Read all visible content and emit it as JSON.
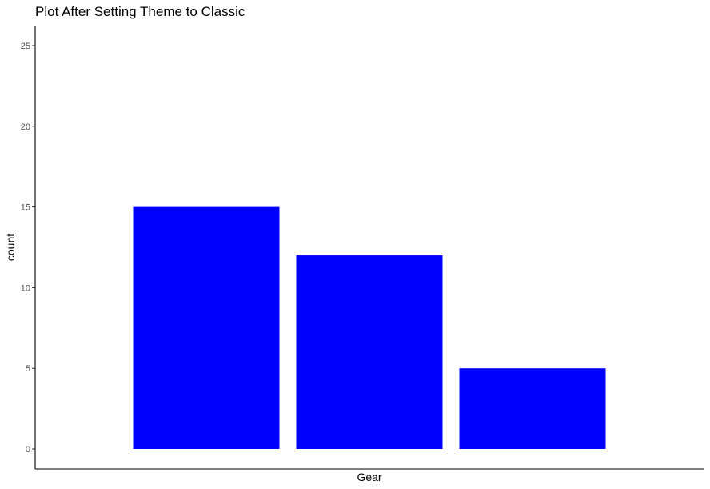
{
  "chart_data": {
    "type": "bar",
    "title": "Plot After Setting Theme to Classic",
    "xlabel": "Gear",
    "ylabel": "count",
    "categories": [
      "",
      "",
      ""
    ],
    "values": [
      15,
      12,
      5
    ],
    "ylim": [
      0,
      26
    ],
    "yticks": [
      0,
      5,
      10,
      15,
      20,
      25
    ],
    "yticks_labels": [
      "0",
      "5",
      "10",
      "15",
      "20",
      "25"
    ],
    "bar_color": "#0000ff",
    "grid": false,
    "legend": "none"
  }
}
